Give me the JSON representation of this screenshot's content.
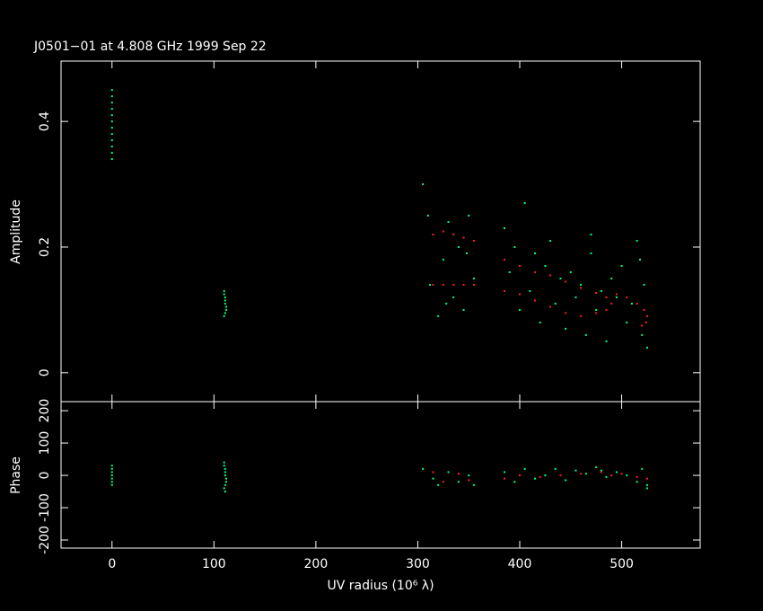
{
  "chart_data": [
    {
      "type": "scatter",
      "title": "J0501−01 at 4.808 GHz 1999 Sep 22",
      "y_label": "Amplitude",
      "xlim": [
        -50,
        577
      ],
      "xticks": [
        0,
        100,
        200,
        300,
        400,
        500
      ],
      "ylim": [
        -0.046,
        0.496
      ],
      "yticks": [
        0,
        0.2,
        0.4
      ],
      "series": [
        {
          "color": "#00ff7f",
          "x": [
            0,
            0,
            0,
            0,
            0,
            0,
            0,
            0,
            0,
            0,
            0,
            0,
            110,
            110,
            111,
            111,
            111,
            112,
            112,
            111,
            110,
            305,
            310,
            315,
            320,
            325,
            330,
            335,
            340,
            345,
            350,
            355,
            312,
            328,
            348,
            385,
            390,
            395,
            400,
            405,
            410,
            415,
            420,
            425,
            430,
            435,
            440,
            445,
            450,
            455,
            460,
            465,
            470,
            475,
            480,
            485,
            490,
            495,
            500,
            505,
            510,
            515,
            520,
            522,
            525,
            518,
            470
          ],
          "values": [
            0.45,
            0.44,
            0.43,
            0.42,
            0.41,
            0.4,
            0.39,
            0.38,
            0.37,
            0.36,
            0.35,
            0.34,
            0.13,
            0.125,
            0.12,
            0.115,
            0.11,
            0.105,
            0.1,
            0.095,
            0.09,
            0.3,
            0.25,
            0.22,
            0.09,
            0.18,
            0.24,
            0.12,
            0.2,
            0.1,
            0.25,
            0.15,
            0.14,
            0.11,
            0.19,
            0.23,
            0.16,
            0.2,
            0.1,
            0.27,
            0.13,
            0.19,
            0.08,
            0.17,
            0.21,
            0.11,
            0.15,
            0.07,
            0.16,
            0.12,
            0.14,
            0.06,
            0.19,
            0.1,
            0.13,
            0.05,
            0.15,
            0.12,
            0.17,
            0.08,
            0.11,
            0.21,
            0.06,
            0.14,
            0.04,
            0.18,
            0.22
          ]
        },
        {
          "color": "#ff2020",
          "x": [
            315,
            325,
            335,
            345,
            355,
            315,
            325,
            335,
            345,
            355,
            385,
            400,
            415,
            430,
            445,
            460,
            475,
            485,
            490,
            485,
            385,
            400,
            415,
            430,
            445,
            460,
            475,
            495,
            505,
            515,
            522,
            525,
            524,
            520
          ],
          "values": [
            0.22,
            0.225,
            0.22,
            0.215,
            0.21,
            0.14,
            0.14,
            0.14,
            0.14,
            0.14,
            0.18,
            0.17,
            0.16,
            0.155,
            0.145,
            0.135,
            0.127,
            0.12,
            0.11,
            0.1,
            0.13,
            0.125,
            0.115,
            0.105,
            0.095,
            0.09,
            0.095,
            0.125,
            0.12,
            0.11,
            0.1,
            0.09,
            0.08,
            0.075
          ]
        }
      ]
    },
    {
      "type": "scatter",
      "y_label": "Phase",
      "x_label": "UV radius  (10⁶ λ)",
      "xlim": [
        -50,
        577
      ],
      "xticks": [
        0,
        100,
        200,
        300,
        400,
        500
      ],
      "ylim": [
        -225,
        228
      ],
      "yticks": [
        -200,
        -100,
        0,
        100,
        200
      ],
      "series": [
        {
          "color": "#00ff7f",
          "x": [
            0,
            0,
            0,
            0,
            0,
            0,
            0,
            110,
            110,
            111,
            111,
            111,
            112,
            112,
            111,
            110,
            111,
            305,
            315,
            320,
            330,
            340,
            350,
            355,
            385,
            395,
            405,
            415,
            425,
            435,
            445,
            455,
            465,
            475,
            485,
            495,
            505,
            515,
            520,
            525,
            525,
            480
          ],
          "values": [
            30,
            20,
            10,
            0,
            -10,
            -20,
            -30,
            40,
            30,
            20,
            10,
            0,
            -10,
            -20,
            -30,
            -40,
            -50,
            20,
            -10,
            -30,
            10,
            -20,
            0,
            -30,
            10,
            -20,
            20,
            -10,
            0,
            20,
            -15,
            15,
            5,
            25,
            -5,
            10,
            0,
            -20,
            20,
            -30,
            -40,
            15
          ]
        },
        {
          "color": "#ff2020",
          "x": [
            315,
            325,
            340,
            350,
            385,
            400,
            420,
            440,
            460,
            480,
            490,
            500,
            515,
            525
          ],
          "values": [
            10,
            -20,
            5,
            -15,
            -10,
            0,
            -5,
            0,
            5,
            10,
            0,
            5,
            -5,
            -10
          ]
        }
      ]
    }
  ]
}
